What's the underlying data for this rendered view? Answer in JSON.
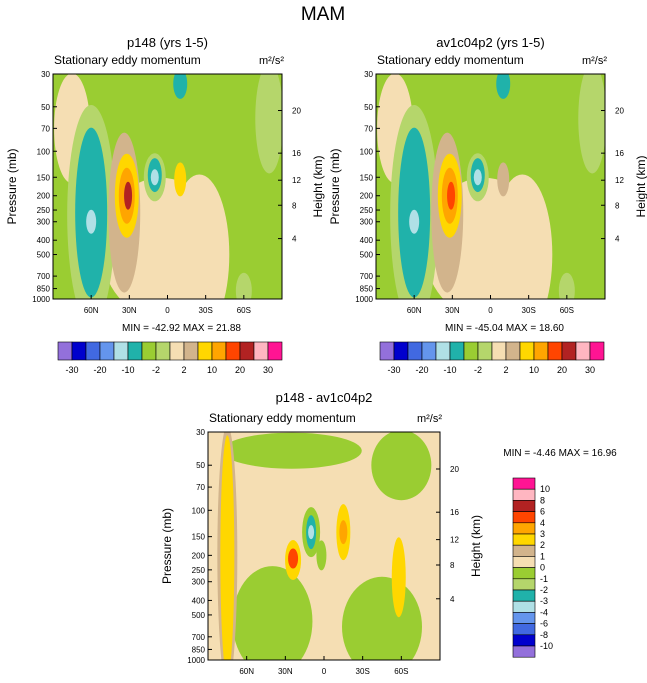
{
  "page": {
    "title": "MAM"
  },
  "chart_data": [
    {
      "type": "heatmap",
      "id": "p148",
      "title": "p148 (yrs 1-5)",
      "subtitle": "Stationary eddy momentum",
      "units": "m²/s²",
      "ylabel": "Pressure (mb)",
      "ylabel_right": "Height (km)",
      "x_ticks": [
        "60N",
        "30N",
        "0",
        "30S",
        "60S"
      ],
      "y_ticks": [
        "30",
        "50",
        "70",
        "100",
        "150",
        "200",
        "250",
        "300",
        "400",
        "500",
        "700",
        "850",
        "1000"
      ],
      "y2_ticks": [
        "20",
        "16",
        "12",
        "8",
        "4"
      ],
      "min": -42.92,
      "max": 21.88,
      "stats": "MIN = -42.92   MAX =  21.88"
    },
    {
      "type": "heatmap",
      "id": "av1c04p2",
      "title": "av1c04p2 (yrs 1-5)",
      "subtitle": "Stationary eddy momentum",
      "units": "m²/s²",
      "ylabel": "Pressure (mb)",
      "ylabel_right": "Height (km)",
      "x_ticks": [
        "60N",
        "30N",
        "0",
        "30S",
        "60S"
      ],
      "y_ticks": [
        "30",
        "50",
        "70",
        "100",
        "150",
        "200",
        "250",
        "300",
        "400",
        "500",
        "700",
        "850",
        "1000"
      ],
      "y2_ticks": [
        "20",
        "16",
        "12",
        "8",
        "4"
      ],
      "min": -45.04,
      "max": 18.6,
      "stats": "MIN = -45.04   MAX =  18.60"
    },
    {
      "type": "heatmap",
      "id": "diff",
      "title": "p148 - av1c04p2",
      "subtitle": "Stationary eddy momentum",
      "units": "m²/s²",
      "ylabel": "Pressure (mb)",
      "ylabel_right": "Height (km)",
      "x_ticks": [
        "60N",
        "30N",
        "0",
        "30S",
        "60S"
      ],
      "y_ticks": [
        "30",
        "50",
        "70",
        "100",
        "150",
        "200",
        "250",
        "300",
        "400",
        "500",
        "700",
        "850",
        "1000"
      ],
      "y2_ticks": [
        "20",
        "16",
        "12",
        "8",
        "4"
      ],
      "min": -4.46,
      "max": 16.96,
      "stats": "MIN = -4.46   MAX =  16.96"
    }
  ],
  "colorbar_top": {
    "labels": [
      "-30",
      "-20",
      "-10",
      "-2",
      "2",
      "10",
      "20",
      "30"
    ],
    "colors": [
      "#9370db",
      "#0000cd",
      "#4169e1",
      "#6495ed",
      "#b0e0e6",
      "#20b2aa",
      "#9acd32",
      "#b5d66b",
      "#f5deb3",
      "#d2b48c",
      "#ffd700",
      "#ffa500",
      "#ff4500",
      "#b22222",
      "#ffb6c1",
      "#ff1493"
    ]
  },
  "colorbar_diff": {
    "labels": [
      "10",
      "8",
      "6",
      "4",
      "3",
      "2",
      "1",
      "0",
      "-1",
      "-2",
      "-3",
      "-4",
      "-6",
      "-8",
      "-10"
    ],
    "colors": [
      "#ff1493",
      "#ffb6c1",
      "#b22222",
      "#ff4500",
      "#ffa500",
      "#ffd700",
      "#d2b48c",
      "#f5deb3",
      "#9acd32",
      "#b5d66b",
      "#20b2aa",
      "#b0e0e6",
      "#6495ed",
      "#4169e1",
      "#0000cd",
      "#9370db"
    ]
  }
}
